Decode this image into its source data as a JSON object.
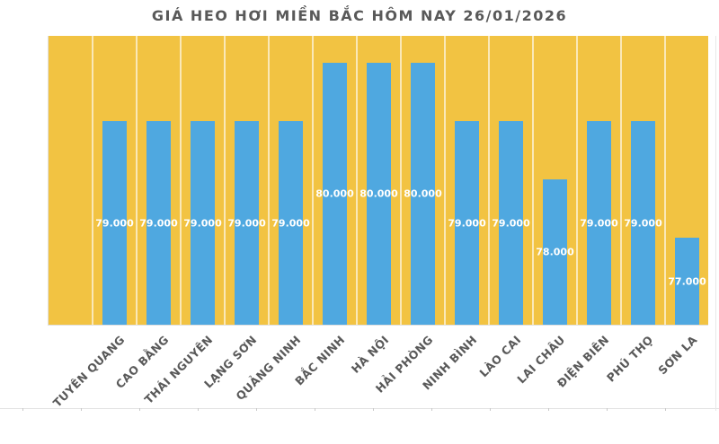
{
  "chart_data": {
    "type": "bar",
    "title": "GIÁ HEO HƠI MIỀN BẮC HÔM NAY 26/01/2026",
    "categories": [
      "TUYÊN QUANG",
      "CAO BẰNG",
      "THÁI NGUYÊN",
      "LẠNG SƠN",
      "QUẢNG NINH",
      "BẮC NINH",
      "HÀ NỘI",
      "HẢI PHÒNG",
      "NINH BÌNH",
      "LÀO CAI",
      "LAI CHÂU",
      "ĐIỆN BIÊN",
      "PHÚ THỌ",
      "SƠN LA"
    ],
    "values": [
      79000,
      79000,
      79000,
      79000,
      79000,
      80000,
      80000,
      80000,
      79000,
      79000,
      78000,
      79000,
      79000,
      77000
    ],
    "value_labels": [
      "79.000",
      "79.000",
      "79.000",
      "79.000",
      "79.000",
      "80.000",
      "80.000",
      "80.000",
      "79.000",
      "79.000",
      "78.000",
      "79.000",
      "79.000",
      "77.000"
    ],
    "xlabel": "",
    "ylabel": "",
    "ylim": [
      75500,
      80000
    ],
    "grid": "vertical category separators only",
    "legend": "none",
    "value_label_position": "inside-center",
    "category_label_rotation_deg": -45,
    "colors": {
      "plot_background": "#F2C342",
      "bar_fill": "#4FA8E0",
      "bar_value_text": "#FFFFFF",
      "title_text": "#595959",
      "category_label_text": "#595959",
      "category_separator": "rgba(255,255,255,0.62)",
      "sheet_gridline": "#E3E3E3"
    }
  }
}
